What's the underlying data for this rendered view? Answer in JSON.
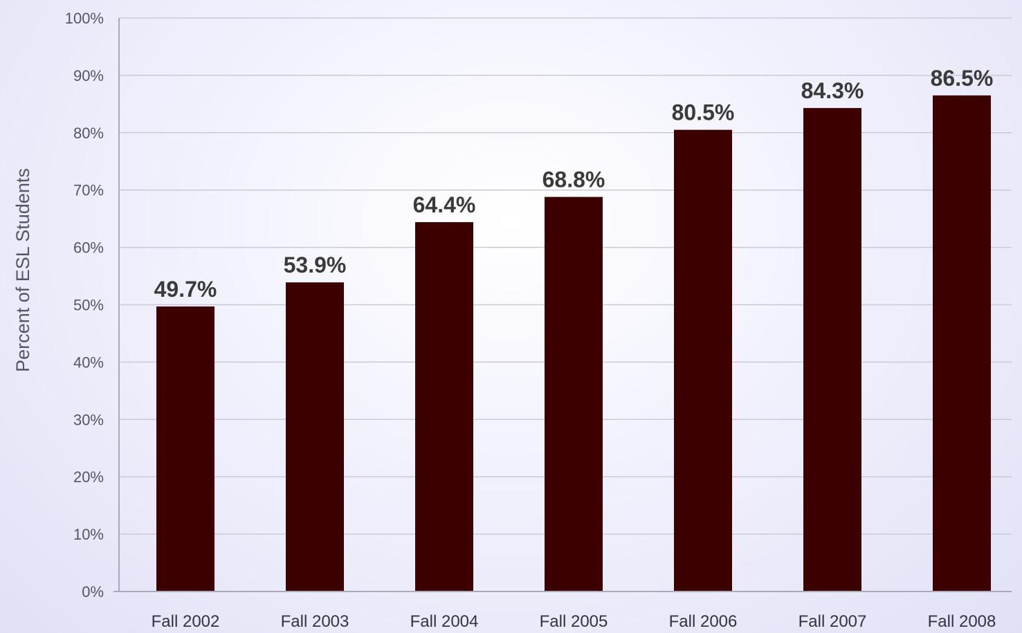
{
  "chart_data": {
    "type": "bar",
    "ylabel": "Percent of  ESL Students",
    "categories": [
      "Fall 2002",
      "Fall 2003",
      "Fall 2004",
      "Fall 2005",
      "Fall 2006",
      "Fall 2007",
      "Fall 2008"
    ],
    "values": [
      49.7,
      53.9,
      64.4,
      68.8,
      80.5,
      84.3,
      86.5
    ],
    "data_labels": [
      "49.7%",
      "53.9%",
      "64.4%",
      "68.8%",
      "80.5%",
      "84.3%",
      "86.5%"
    ],
    "y_ticks": [
      0,
      10,
      20,
      30,
      40,
      50,
      60,
      70,
      80,
      90,
      100
    ],
    "y_tick_labels": [
      "0%",
      "10%",
      "20%",
      "30%",
      "40%",
      "50%",
      "60%",
      "70%",
      "80%",
      "90%",
      "100%"
    ],
    "ylim": [
      0,
      100
    ],
    "grid": true,
    "legend": "none",
    "colors": {
      "bar": "#3d0000",
      "grid": "#c9c9d8"
    }
  }
}
